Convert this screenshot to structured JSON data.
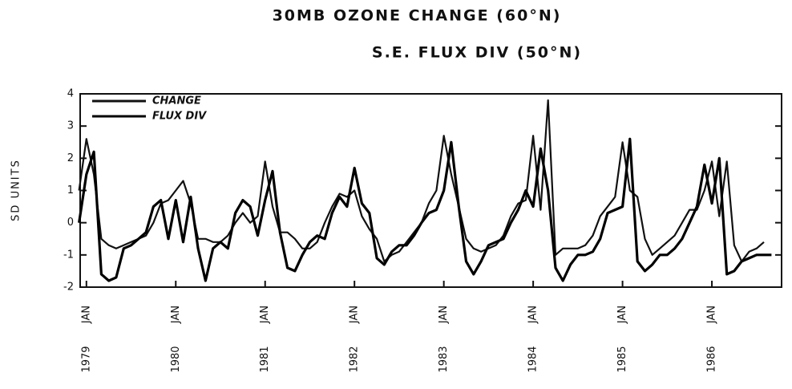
{
  "chart_data": {
    "type": "line",
    "title": "30MB OZONE CHANGE (60°N)",
    "subtitle": "S.E. FLUX DIV (50°N)",
    "y_label": "SD UNITS",
    "x": [
      1978.917,
      1979.0,
      1979.083,
      1979.167,
      1979.25,
      1979.333,
      1979.417,
      1979.5,
      1979.583,
      1979.667,
      1979.75,
      1979.833,
      1979.917,
      1980.0,
      1980.083,
      1980.167,
      1980.25,
      1980.333,
      1980.417,
      1980.5,
      1980.583,
      1980.667,
      1980.75,
      1980.833,
      1980.917,
      1981.0,
      1981.083,
      1981.167,
      1981.25,
      1981.333,
      1981.417,
      1981.5,
      1981.583,
      1981.667,
      1981.75,
      1981.833,
      1981.917,
      1982.0,
      1982.083,
      1982.167,
      1982.25,
      1982.333,
      1982.417,
      1982.5,
      1982.583,
      1982.667,
      1982.75,
      1982.833,
      1982.917,
      1983.0,
      1983.083,
      1983.167,
      1983.25,
      1983.333,
      1983.417,
      1983.5,
      1983.583,
      1983.667,
      1983.75,
      1983.833,
      1983.917,
      1984.0,
      1984.083,
      1984.167,
      1984.25,
      1984.333,
      1984.417,
      1984.5,
      1984.583,
      1984.667,
      1984.75,
      1984.833,
      1984.917,
      1985.0,
      1985.083,
      1985.167,
      1985.25,
      1985.333,
      1985.417,
      1985.5,
      1985.583,
      1985.667,
      1985.75,
      1985.833,
      1985.917,
      1986.0,
      1986.083,
      1986.167,
      1986.25,
      1986.333,
      1986.417,
      1986.5,
      1986.583,
      1986.667
    ],
    "series": [
      {
        "name": "CHANGE",
        "color": "#111111",
        "values": [
          1.0,
          2.6,
          1.5,
          -0.5,
          -0.7,
          -0.8,
          -0.7,
          -0.6,
          -0.5,
          -0.4,
          0.0,
          0.6,
          0.7,
          1.0,
          1.3,
          0.6,
          -0.5,
          -0.5,
          -0.6,
          -0.6,
          -0.4,
          0.0,
          0.3,
          0.0,
          0.2,
          1.9,
          0.5,
          -0.3,
          -0.3,
          -0.5,
          -0.8,
          -0.8,
          -0.6,
          0.0,
          0.5,
          0.9,
          0.8,
          1.0,
          0.2,
          -0.2,
          -0.5,
          -1.2,
          -1.0,
          -0.9,
          -0.6,
          -0.3,
          0.0,
          0.6,
          1.0,
          2.7,
          1.5,
          0.5,
          -0.5,
          -0.8,
          -0.9,
          -0.8,
          -0.7,
          -0.4,
          0.2,
          0.6,
          0.7,
          2.7,
          0.4,
          3.8,
          -1.0,
          -0.8,
          -0.8,
          -0.8,
          -0.7,
          -0.4,
          0.2,
          0.5,
          0.8,
          2.5,
          1.0,
          0.8,
          -0.5,
          -1.0,
          -0.8,
          -0.6,
          -0.4,
          0.0,
          0.4,
          0.4,
          1.0,
          1.9,
          0.2,
          1.9,
          -0.7,
          -1.2,
          -0.9,
          -0.8,
          -0.6,
          null
        ]
      },
      {
        "name": "FLUX DIV",
        "color": "#000000",
        "values": [
          0.0,
          1.5,
          2.2,
          -1.6,
          -1.8,
          -1.7,
          -0.8,
          -0.7,
          -0.5,
          -0.3,
          0.5,
          0.7,
          -0.5,
          0.7,
          -0.6,
          0.8,
          -0.8,
          -1.8,
          -0.8,
          -0.6,
          -0.8,
          0.3,
          0.7,
          0.5,
          -0.4,
          0.7,
          1.6,
          -0.3,
          -1.4,
          -1.5,
          -1.0,
          -0.6,
          -0.4,
          -0.5,
          0.3,
          0.8,
          0.5,
          1.7,
          0.6,
          0.3,
          -1.1,
          -1.3,
          -0.9,
          -0.7,
          -0.7,
          -0.4,
          0.0,
          0.3,
          0.4,
          1.0,
          2.5,
          0.5,
          -1.2,
          -1.6,
          -1.2,
          -0.7,
          -0.6,
          -0.5,
          0.0,
          0.4,
          1.0,
          0.5,
          2.3,
          1.0,
          -1.4,
          -1.8,
          -1.3,
          -1.0,
          -1.0,
          -0.9,
          -0.5,
          0.3,
          0.4,
          0.5,
          2.6,
          -1.2,
          -1.5,
          -1.3,
          -1.0,
          -1.0,
          -0.8,
          -0.5,
          0.0,
          0.5,
          1.8,
          0.6,
          2.0,
          -1.6,
          -1.5,
          -1.2,
          -1.1,
          -1.0,
          -1.0,
          -1.0
        ]
      }
    ],
    "xlim": [
      1978.93,
      1986.78
    ],
    "xticks": [
      {
        "value": 1979,
        "label": "JAN"
      },
      {
        "value": 1980,
        "label": "JAN"
      },
      {
        "value": 1981,
        "label": "JAN"
      },
      {
        "value": 1982,
        "label": "JAN"
      },
      {
        "value": 1983,
        "label": "JAN"
      },
      {
        "value": 1984,
        "label": "JAN"
      },
      {
        "value": 1985,
        "label": "JAN"
      },
      {
        "value": 1986,
        "label": "JAN"
      }
    ],
    "ylim": [
      -2,
      4
    ],
    "yticks": [
      -2,
      -1,
      0,
      1,
      2,
      3,
      4
    ],
    "legend": "upper left"
  }
}
